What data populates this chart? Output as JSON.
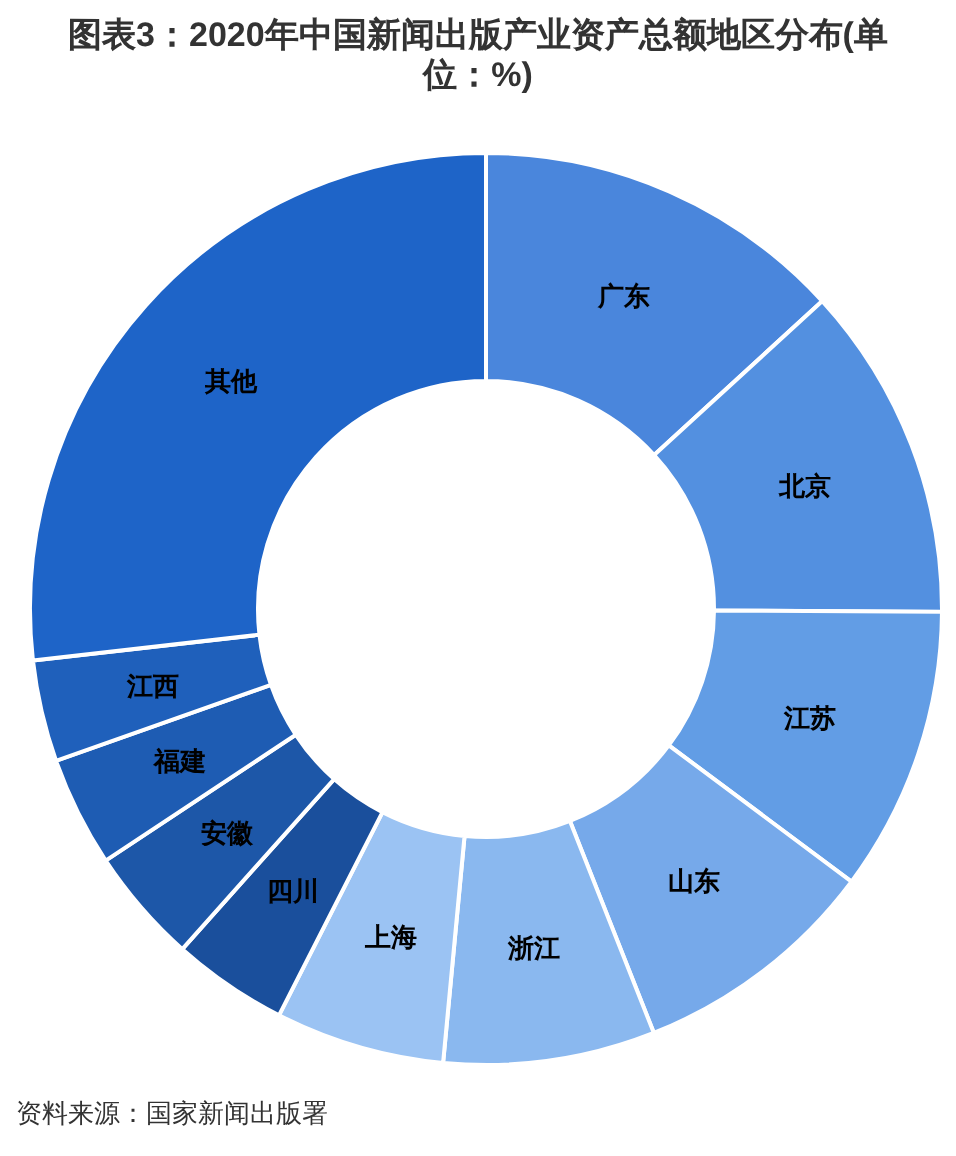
{
  "chart_data": {
    "type": "donut",
    "title": "图表3：2020年中国新闻出版产业资产总额地区分布(单位：%)",
    "categories": [
      "广东",
      "北京",
      "江苏",
      "山东",
      "浙江",
      "上海",
      "四川",
      "安徽",
      "福建",
      "江西",
      "其他"
    ],
    "values": [
      13.2,
      11.9,
      10.1,
      8.8,
      7.5,
      6.0,
      4.1,
      4.1,
      3.9,
      3.6,
      26.8
    ],
    "colors": [
      "#4a86dc",
      "#5390e0",
      "#629de5",
      "#76a9ea",
      "#8ab8ef",
      "#9bc3f3",
      "#1a4f9c",
      "#1d57a8",
      "#1e5cb3",
      "#1f60bb",
      "#1e64c8"
    ],
    "annotations": [
      "资料来源：国家新闻出版署"
    ]
  }
}
